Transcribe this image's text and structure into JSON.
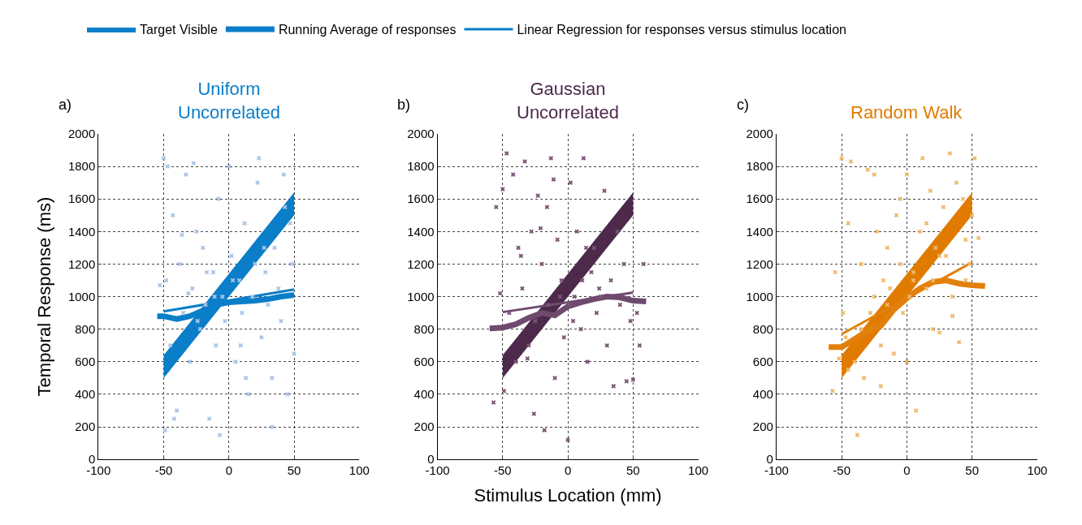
{
  "chart_data": [
    {
      "type": "scatter",
      "title": "Uniform\nUncorrelated",
      "ylabel": "Temporal Response (ms)",
      "annotations": [
        "a)"
      ],
      "xlim": [
        -100,
        100
      ],
      "xticks": [
        -100,
        -50,
        0,
        50,
        100
      ],
      "ylim": [
        0,
        2000
      ],
      "yticks": [
        0,
        200,
        400,
        600,
        800,
        1000,
        1200,
        1400,
        1600,
        1800,
        2000
      ],
      "grid": true,
      "legend": "top",
      "series": [
        {
          "marker": "cross",
          "color": "#a9c4e6",
          "x": [
            -50,
            -48,
            -45,
            -43,
            -40,
            -38,
            -35,
            -33,
            -30,
            -28,
            -25,
            -22,
            -20,
            -18,
            -15,
            -12,
            -10,
            -8,
            -5,
            -3,
            0,
            2,
            5,
            8,
            10,
            12,
            15,
            18,
            20,
            22,
            25,
            28,
            30,
            33,
            35,
            38,
            40,
            42,
            45,
            48,
            50,
            -47,
            -42,
            -36,
            -27,
            -17,
            -7,
            3,
            13,
            23,
            33,
            43,
            -49,
            -31,
            -11,
            9,
            27,
            47,
            -53,
            -24
          ],
          "values": [
            1850,
            1100,
            700,
            1500,
            300,
            1200,
            900,
            1750,
            600,
            1050,
            1400,
            800,
            1300,
            950,
            250,
            1150,
            700,
            1600,
            1000,
            850,
            1800,
            1250,
            600,
            1100,
            900,
            1450,
            400,
            1000,
            1200,
            1700,
            750,
            1150,
            950,
            500,
            1300,
            1050,
            850,
            1750,
            400,
            1200,
            650,
            1800,
            250,
            1380,
            1820,
            1150,
            150,
            1100,
            500,
            1850,
            200,
            1550,
            180,
            1020,
            1000,
            700,
            1300,
            1450,
            1070,
            850
          ]
        },
        {
          "type": "line",
          "name": "Target Visible",
          "color": "#0a7ec8",
          "x": [
            -50,
            50
          ],
          "values": [
            null,
            null
          ],
          "lower": [
            500,
            1500
          ],
          "upper": [
            640,
            1640
          ]
        },
        {
          "type": "line",
          "name": "Running Average of responses",
          "color": "#0a7ec8",
          "x": [
            -55,
            -50,
            -40,
            -30,
            -20,
            -10,
            0,
            10,
            20,
            30,
            40,
            50
          ],
          "values": [
            880,
            880,
            862,
            880,
            915,
            950,
            965,
            970,
            975,
            985,
            1000,
            1010
          ]
        },
        {
          "type": "line",
          "name": "Linear Regression for responses versus stimulus location",
          "color": "#0a7ec8",
          "x": [
            -50,
            50
          ],
          "values": [
            909,
            1044
          ]
        }
      ]
    },
    {
      "type": "scatter",
      "title": "Gaussian\nUncorrelated",
      "xlabel": "Stimulus Location (mm)",
      "annotations": [
        "b)"
      ],
      "xlim": [
        -100,
        100
      ],
      "xticks": [
        -100,
        -50,
        0,
        50,
        100
      ],
      "ylim": [
        0,
        2000
      ],
      "yticks": [
        0,
        200,
        400,
        600,
        800,
        1000,
        1200,
        1400,
        1600,
        1800,
        2000
      ],
      "grid": true,
      "series": [
        {
          "marker": "cross",
          "color": "#7a5577",
          "x": [
            -57,
            -55,
            -52,
            -50,
            -49,
            -47,
            -45,
            -42,
            -40,
            -38,
            -35,
            -33,
            -30,
            -28,
            -25,
            -23,
            -20,
            -18,
            -15,
            -13,
            -10,
            -8,
            -5,
            -3,
            0,
            2,
            5,
            7,
            10,
            12,
            15,
            18,
            20,
            22,
            25,
            28,
            30,
            33,
            35,
            38,
            40,
            43,
            45,
            48,
            50,
            53,
            55,
            58,
            -36,
            -26,
            -16,
            -6,
            4,
            14,
            24,
            -21,
            -11,
            1,
            11,
            -31
          ],
          "values": [
            350,
            1550,
            1020,
            1660,
            420,
            1880,
            900,
            1750,
            600,
            1300,
            1050,
            1830,
            700,
            1400,
            850,
            1620,
            1200,
            180,
            950,
            1850,
            500,
            1350,
            1100,
            750,
            120,
            1700,
            1000,
            1400,
            800,
            1850,
            600,
            1150,
            1300,
            900,
            1000,
            1650,
            700,
            1100,
            450,
            1400,
            950,
            1200,
            480,
            850,
            490,
            900,
            700,
            1200,
            1250,
            280,
            1550,
            1000,
            850,
            1300,
            1050,
            1420,
            1720,
            950,
            1100,
            620
          ]
        },
        {
          "type": "line",
          "color": "#4d2a4b",
          "x": [
            -50,
            50
          ],
          "values": [
            null,
            null
          ],
          "lower": [
            500,
            1500
          ],
          "upper": [
            640,
            1640
          ]
        },
        {
          "type": "line",
          "color": "#6e4a6c",
          "x": [
            -60,
            -50,
            -40,
            -30,
            -20,
            -10,
            0,
            10,
            20,
            30,
            40,
            50,
            60
          ],
          "values": [
            805,
            810,
            830,
            870,
            900,
            885,
            940,
            965,
            985,
            1000,
            995,
            975,
            970
          ]
        },
        {
          "type": "line",
          "color": "#6e4a6c",
          "x": [
            -50,
            50
          ],
          "values": [
            905,
            1025
          ]
        }
      ]
    },
    {
      "type": "scatter",
      "title": "Random Walk",
      "annotations": [
        "c)"
      ],
      "xlim": [
        -100,
        100
      ],
      "xticks": [
        -100,
        -50,
        0,
        50,
        100
      ],
      "ylim": [
        0,
        2000
      ],
      "yticks": [
        0,
        200,
        400,
        600,
        800,
        1000,
        1200,
        1400,
        1600,
        1800,
        2000
      ],
      "grid": true,
      "series": [
        {
          "marker": "cross",
          "color": "#f0b868",
          "x": [
            -57,
            -55,
            -52,
            -50,
            -49,
            -47,
            -45,
            -43,
            -40,
            -38,
            -35,
            -33,
            -30,
            -28,
            -25,
            -23,
            -20,
            -18,
            -15,
            -13,
            -10,
            -8,
            -5,
            -3,
            0,
            2,
            5,
            7,
            10,
            12,
            15,
            18,
            20,
            22,
            25,
            28,
            30,
            33,
            35,
            38,
            40,
            43,
            45,
            48,
            50,
            52,
            55,
            -35,
            -25,
            -15,
            -5,
            5,
            15,
            25,
            35,
            -45,
            -20,
            0,
            20,
            45
          ],
          "values": [
            420,
            1150,
            620,
            1850,
            900,
            750,
            1450,
            1830,
            600,
            150,
            1200,
            500,
            1780,
            900,
            1000,
            1400,
            700,
            1100,
            1300,
            1050,
            650,
            1500,
            1200,
            900,
            1750,
            1000,
            1150,
            300,
            1400,
            1850,
            1050,
            1650,
            1100,
            1300,
            780,
            1550,
            1250,
            1880,
            1000,
            1700,
            720,
            1600,
            1350,
            1200,
            1500,
            1850,
            1360,
            800,
            1750,
            950,
            1600,
            1100,
            1450,
            1250,
            880,
            550,
            450,
            600,
            800,
            1100
          ]
        },
        {
          "type": "line",
          "color": "#e07b00",
          "x": [
            -50,
            50
          ],
          "values": [
            null,
            null
          ],
          "lower": [
            500,
            1500
          ],
          "upper": [
            640,
            1640
          ]
        },
        {
          "type": "line",
          "color": "#e2800c",
          "x": [
            -60,
            -50,
            -40,
            -30,
            -20,
            -10,
            0,
            10,
            20,
            30,
            40,
            50,
            60
          ],
          "values": [
            690,
            690,
            740,
            790,
            820,
            920,
            990,
            1050,
            1090,
            1100,
            1080,
            1070,
            1065
          ]
        },
        {
          "type": "line",
          "color": "#e2800c",
          "x": [
            -50,
            50
          ],
          "values": [
            770,
            1210
          ]
        }
      ]
    }
  ]
}
